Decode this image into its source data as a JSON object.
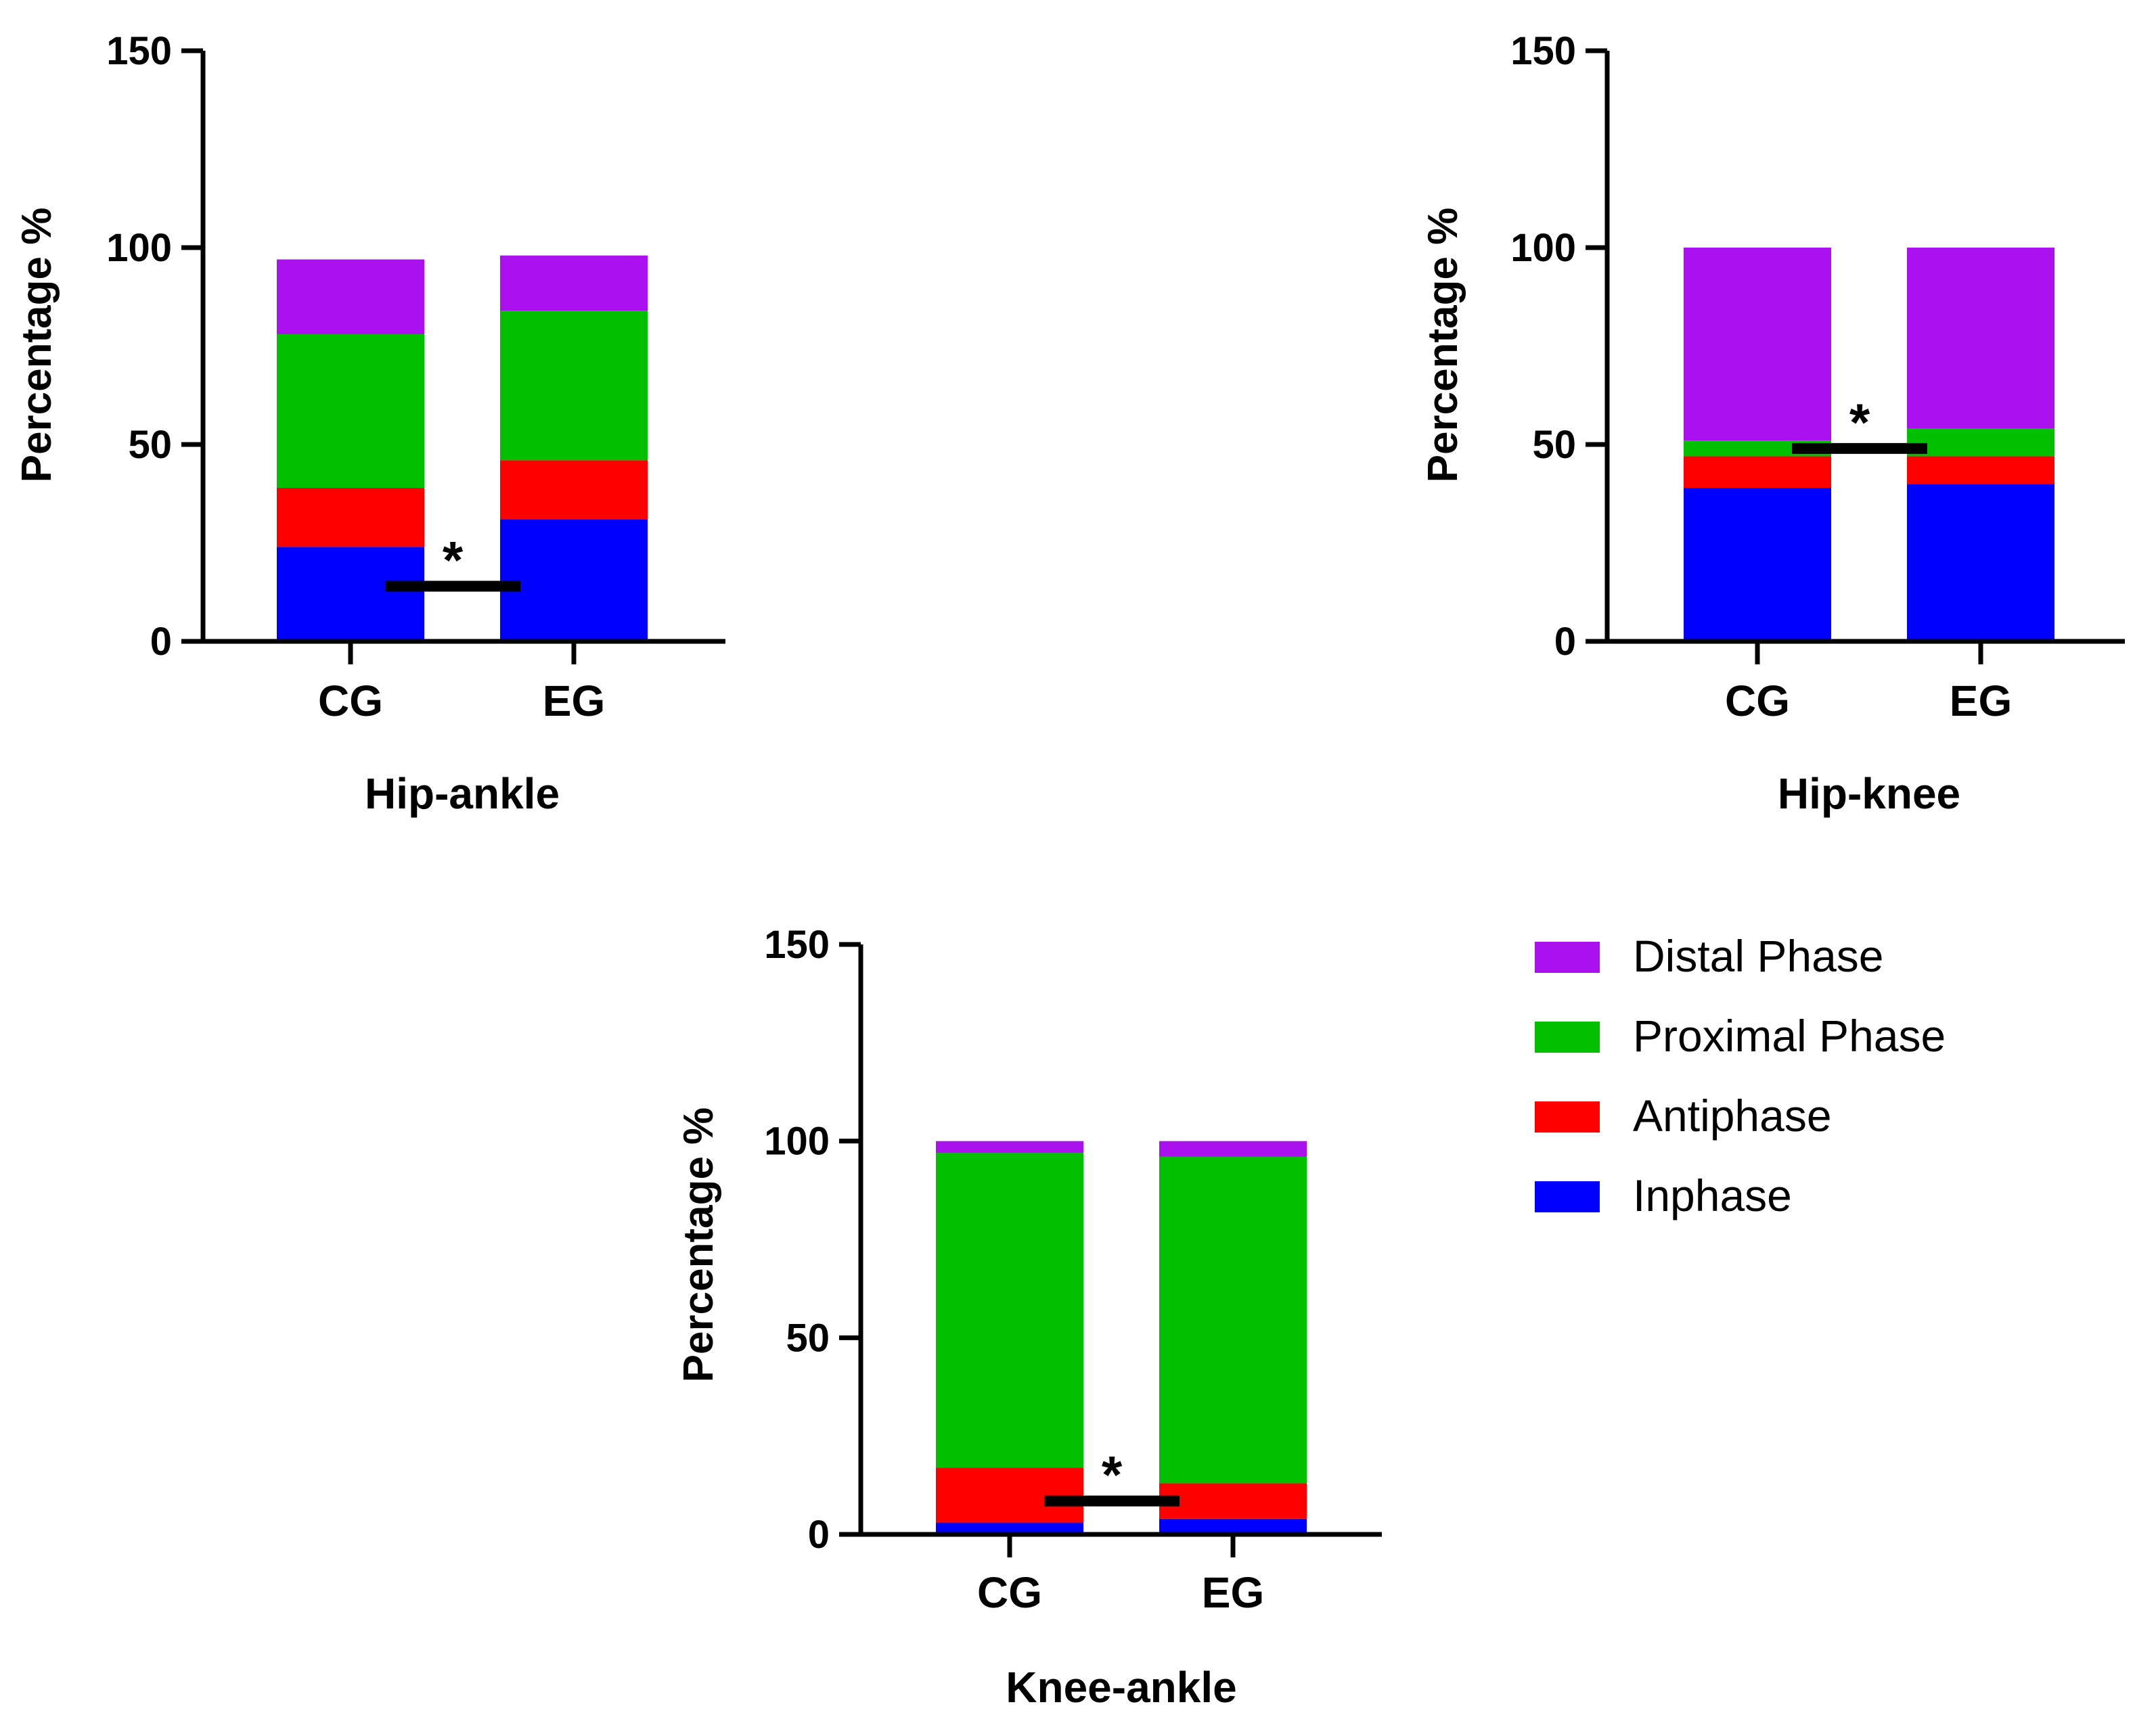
{
  "chart_data": {
    "type": "bar",
    "stacked": true,
    "series_names": [
      "Inphase",
      "Antiphase",
      "Proximal Phase",
      "Distal Phase"
    ],
    "legend": {
      "order": [
        "Distal Phase",
        "Proximal Phase",
        "Antiphase",
        "Inphase"
      ],
      "position": "bottom-right"
    },
    "colors": {
      "Inphase": "#0000ff",
      "Antiphase": "#ff0000",
      "Proximal Phase": "#00c000",
      "Distal Phase": "#aa11ee"
    },
    "panels": [
      {
        "title": "Hip-ankle",
        "ylabel": "Percentage %",
        "ylim": [
          0,
          150
        ],
        "yticks": [
          0,
          50,
          100,
          150
        ],
        "categories": [
          "CG",
          "EG"
        ],
        "series": [
          {
            "name": "Inphase",
            "values": [
              24,
              31
            ]
          },
          {
            "name": "Antiphase",
            "values": [
              15,
              15
            ]
          },
          {
            "name": "Proximal Phase",
            "values": [
              39,
              38
            ]
          },
          {
            "name": "Distal Phase",
            "values": [
              19,
              14
            ]
          }
        ],
        "significance": {
          "label": "*",
          "level": 14
        }
      },
      {
        "title": "Hip-knee",
        "ylabel": "Percentage %",
        "ylim": [
          0,
          150
        ],
        "yticks": [
          0,
          50,
          100,
          150
        ],
        "categories": [
          "CG",
          "EG"
        ],
        "series": [
          {
            "name": "Inphase",
            "values": [
              39,
              40
            ]
          },
          {
            "name": "Antiphase",
            "values": [
              8,
              7
            ]
          },
          {
            "name": "Proximal Phase",
            "values": [
              4,
              7
            ]
          },
          {
            "name": "Distal Phase",
            "values": [
              49,
              46
            ]
          }
        ],
        "significance": {
          "label": "*",
          "level": 49
        }
      },
      {
        "title": "Knee-ankle",
        "ylabel": "Percentage %",
        "ylim": [
          0,
          150
        ],
        "yticks": [
          0,
          50,
          100,
          150
        ],
        "categories": [
          "CG",
          "EG"
        ],
        "series": [
          {
            "name": "Inphase",
            "values": [
              3,
              4
            ]
          },
          {
            "name": "Antiphase",
            "values": [
              14,
              9
            ]
          },
          {
            "name": "Proximal Phase",
            "values": [
              80,
              83
            ]
          },
          {
            "name": "Distal Phase",
            "values": [
              3,
              4
            ]
          }
        ],
        "significance": {
          "label": "*",
          "level": 8.5
        }
      }
    ]
  }
}
